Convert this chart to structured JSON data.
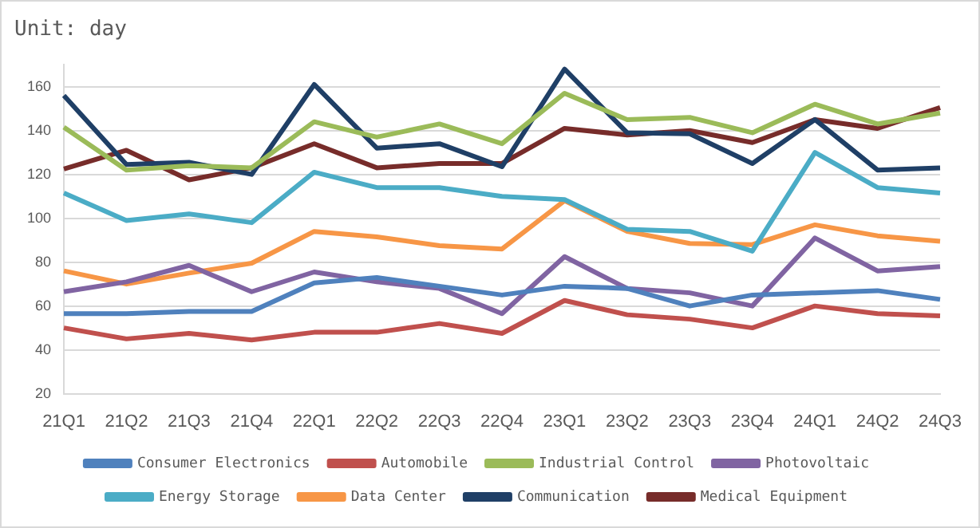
{
  "chart_data": {
    "type": "line",
    "title": "Unit: day",
    "categories": [
      "21Q1",
      "21Q2",
      "21Q3",
      "21Q4",
      "22Q1",
      "22Q2",
      "22Q3",
      "22Q4",
      "23Q1",
      "23Q2",
      "23Q3",
      "23Q4",
      "24Q1",
      "24Q2",
      "24Q3"
    ],
    "series": [
      {
        "name": "Consumer Electronics",
        "color": "#4f81bd",
        "values": [
          56.5,
          56.5,
          57.5,
          57.5,
          70.5,
          73,
          69,
          65,
          69,
          68,
          60,
          65,
          66,
          67,
          63
        ]
      },
      {
        "name": "Automobile",
        "color": "#c0504d",
        "values": [
          50,
          45,
          47.5,
          44.5,
          48,
          48,
          52,
          47.5,
          62.5,
          56,
          54,
          50,
          60,
          56.5,
          55.5
        ]
      },
      {
        "name": "Industrial Control",
        "color": "#9bbb59",
        "values": [
          141.5,
          122,
          124,
          123,
          144,
          137,
          143,
          134,
          157,
          145,
          146,
          139,
          152,
          143,
          148
        ]
      },
      {
        "name": "Photovoltaic",
        "color": "#8064a2",
        "values": [
          66.5,
          71,
          78.5,
          66.5,
          75.5,
          71,
          68,
          56.5,
          82.5,
          68,
          66,
          60,
          91,
          76,
          78
        ]
      },
      {
        "name": "Energy Storage",
        "color": "#4bacc6",
        "values": [
          111.5,
          99,
          102,
          98,
          121,
          114,
          114,
          110,
          108.5,
          95,
          94,
          85,
          130,
          114,
          111.5
        ]
      },
      {
        "name": "Data Center",
        "color": "#f79646",
        "values": [
          76,
          70,
          75,
          79.5,
          94,
          91.5,
          87.5,
          86,
          108,
          94,
          88.5,
          88,
          97,
          92,
          89.5
        ]
      },
      {
        "name": "Communication",
        "color": "#1f3f66",
        "values": [
          156,
          124.5,
          125.5,
          120,
          161,
          132,
          134,
          123.5,
          168,
          139,
          138.5,
          125,
          145,
          122,
          123
        ]
      },
      {
        "name": "Medical Equipment",
        "color": "#772c2a",
        "values": [
          122.5,
          131,
          117.5,
          123,
          134,
          123,
          125,
          125,
          141,
          138,
          140,
          134.5,
          145,
          141,
          150.5
        ]
      }
    ],
    "ylim": [
      20,
      170
    ],
    "yticks": [
      20,
      40,
      60,
      80,
      100,
      120,
      140,
      160
    ],
    "grid": "y",
    "legend": "bottom",
    "marker": "none",
    "line_style": "solid"
  }
}
